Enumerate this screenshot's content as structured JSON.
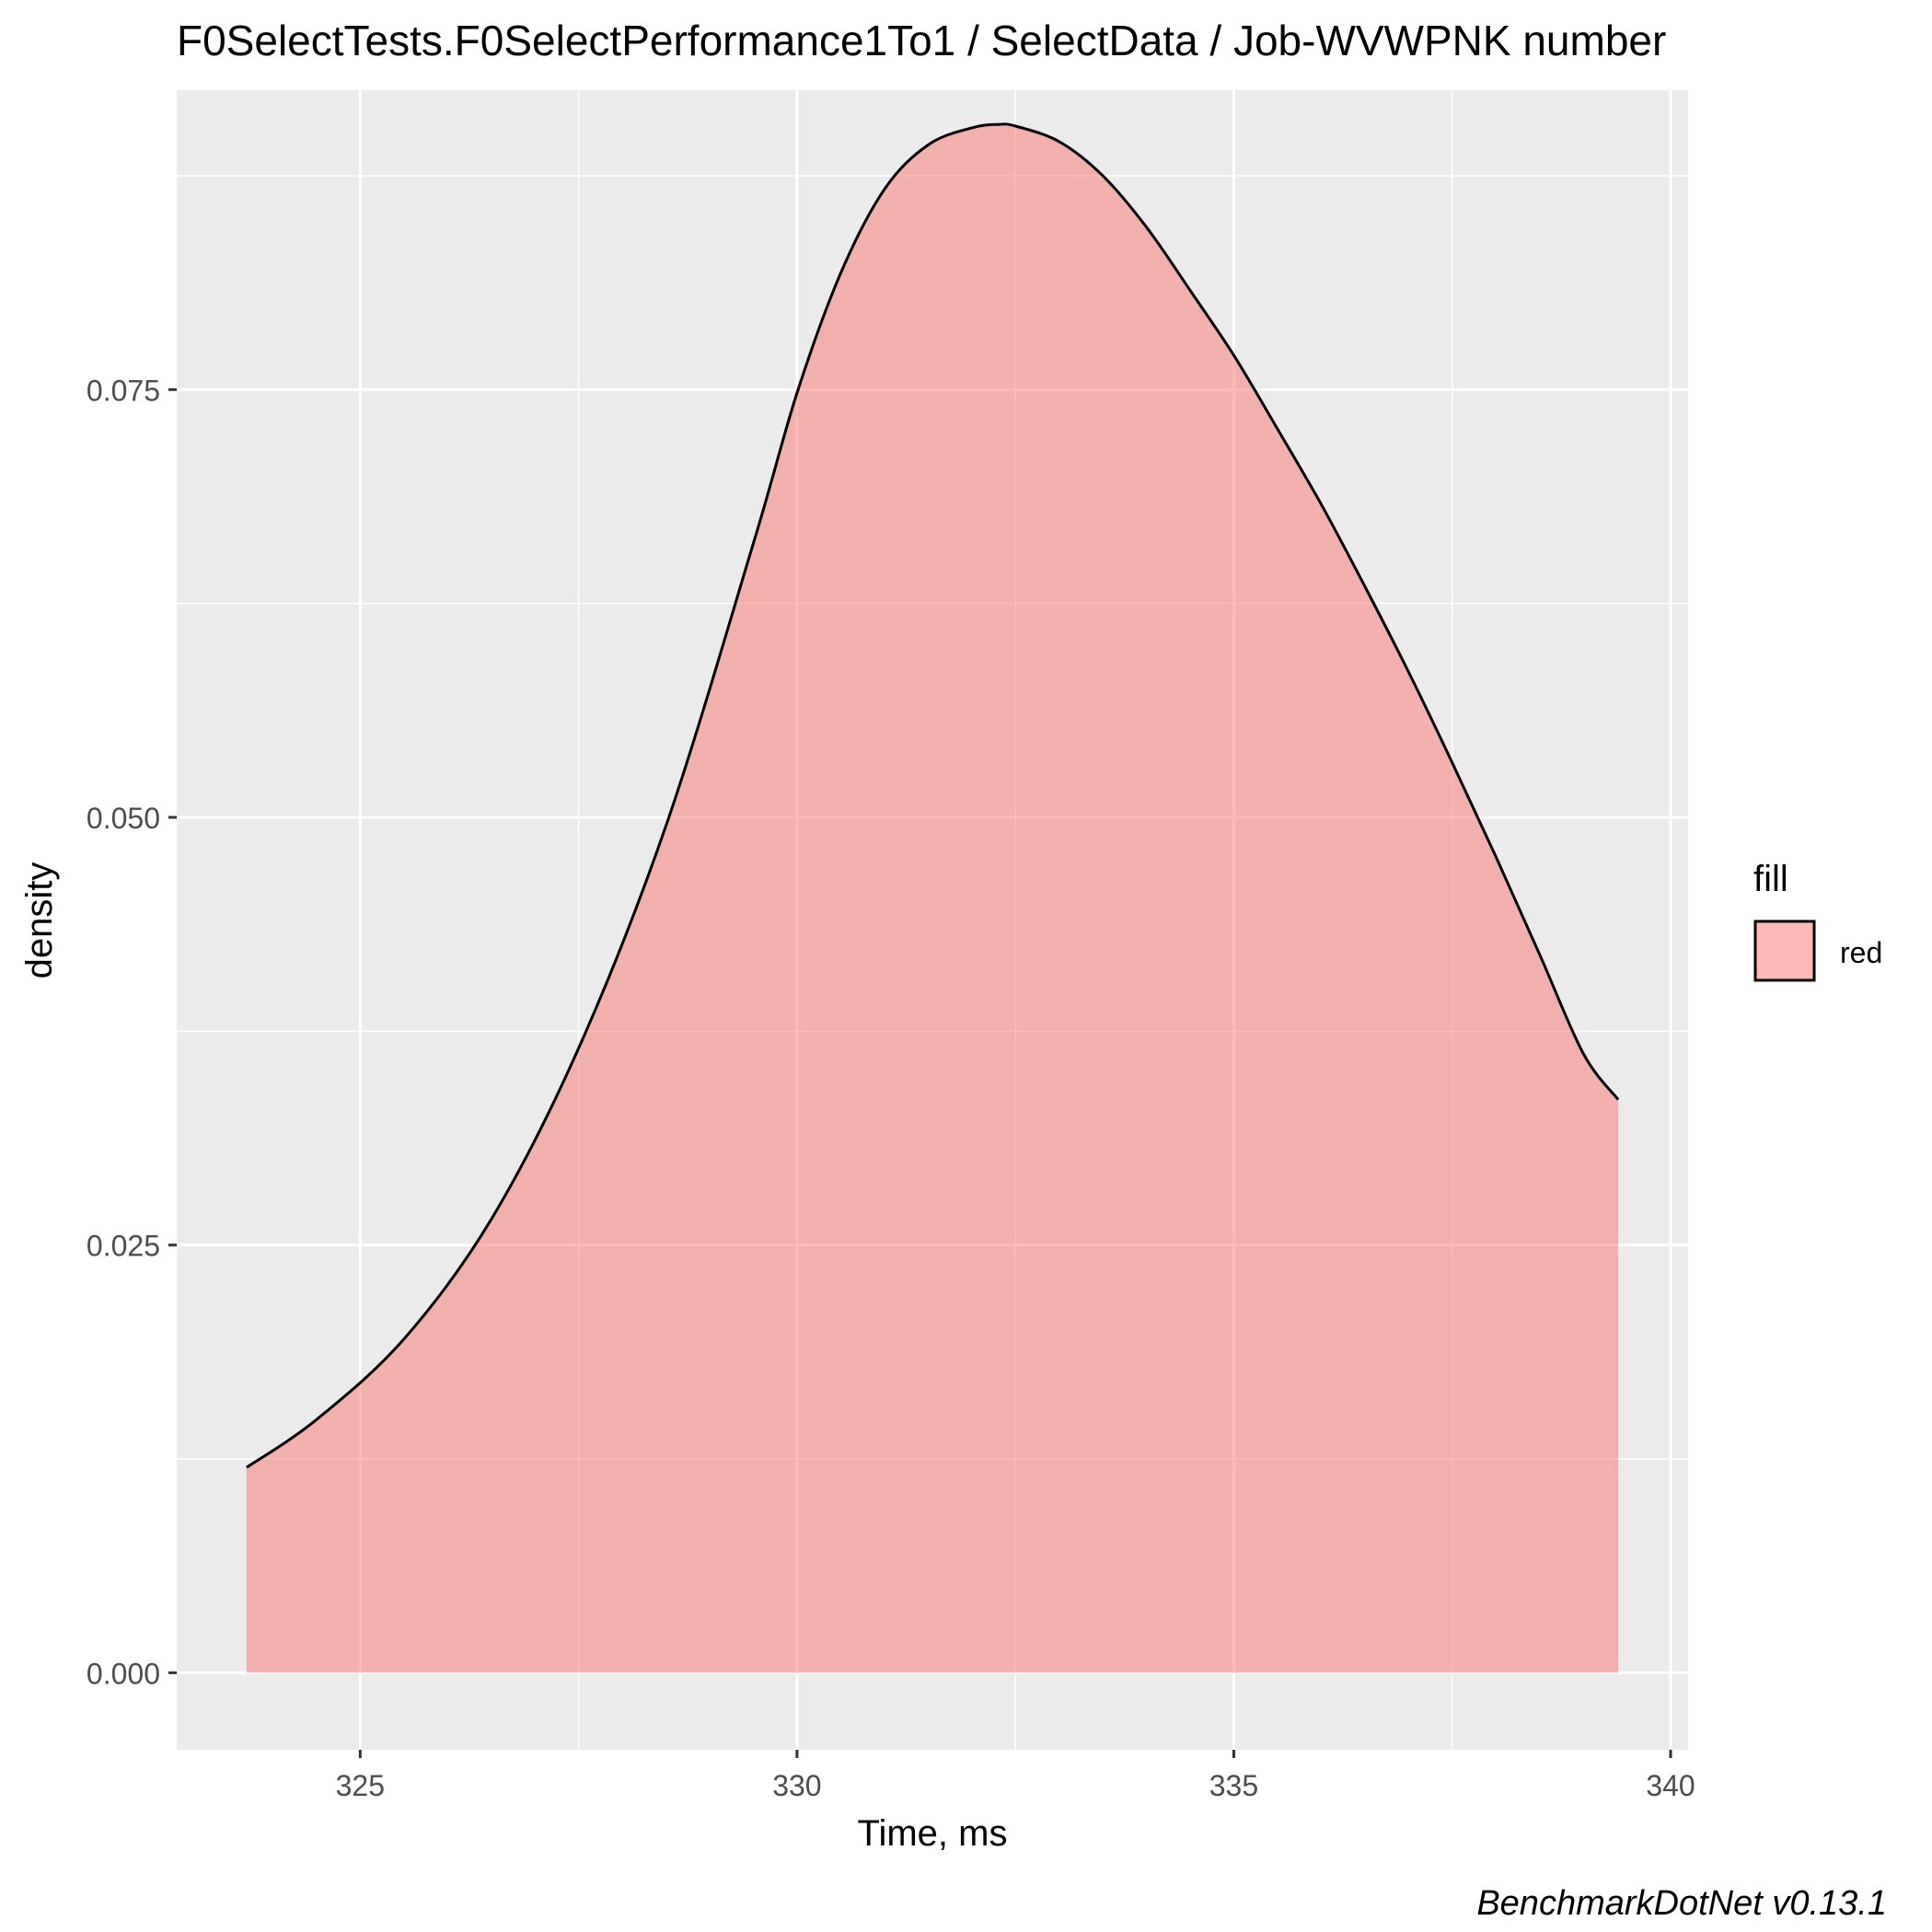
{
  "chart_data": {
    "type": "area",
    "title": "F0SelectTests.F0SelectPerformance1To1 / SelectData / Job-WVWPNK number",
    "xlabel": "Time, ms",
    "ylabel": "density",
    "xlim": [
      322.9,
      340.2
    ],
    "ylim": [
      -0.0045,
      0.0925
    ],
    "x_ticks": [
      325,
      330,
      335,
      340
    ],
    "x_tick_labels": [
      "325",
      "330",
      "335",
      "340"
    ],
    "y_ticks": [
      0.0,
      0.025,
      0.05,
      0.075
    ],
    "y_tick_labels": [
      "0.000",
      "0.025",
      "0.050",
      "0.075"
    ],
    "grid": true,
    "legend": {
      "title": "fill",
      "position": "right",
      "entries": [
        {
          "label": "red",
          "color": "#f8766d"
        }
      ]
    },
    "series": [
      {
        "name": "red",
        "fill": "#f8766d",
        "fill_opacity": 0.5,
        "x": [
          323.7,
          324.5,
          325.5,
          326.5,
          327.5,
          328.5,
          329.5,
          330.0,
          330.5,
          331.0,
          331.5,
          332.0,
          332.3,
          332.5,
          333.0,
          333.5,
          334.0,
          334.5,
          335.0,
          335.5,
          336.0,
          336.5,
          337.0,
          337.5,
          338.0,
          338.5,
          339.0,
          339.4
        ],
        "y": [
          0.012,
          0.0148,
          0.0195,
          0.0265,
          0.0365,
          0.0495,
          0.066,
          0.0748,
          0.0818,
          0.0867,
          0.0893,
          0.0903,
          0.0905,
          0.0904,
          0.0895,
          0.0875,
          0.0845,
          0.0808,
          0.077,
          0.0727,
          0.0683,
          0.0635,
          0.0585,
          0.0532,
          0.0477,
          0.042,
          0.0362,
          0.0335
        ]
      }
    ]
  },
  "caption": "BenchmarkDotNet v0.13.1",
  "colors": {
    "panel": "#ebebeb",
    "grid": "#ffffff",
    "axis_text": "#4d4d4d",
    "outline": "#000000"
  }
}
